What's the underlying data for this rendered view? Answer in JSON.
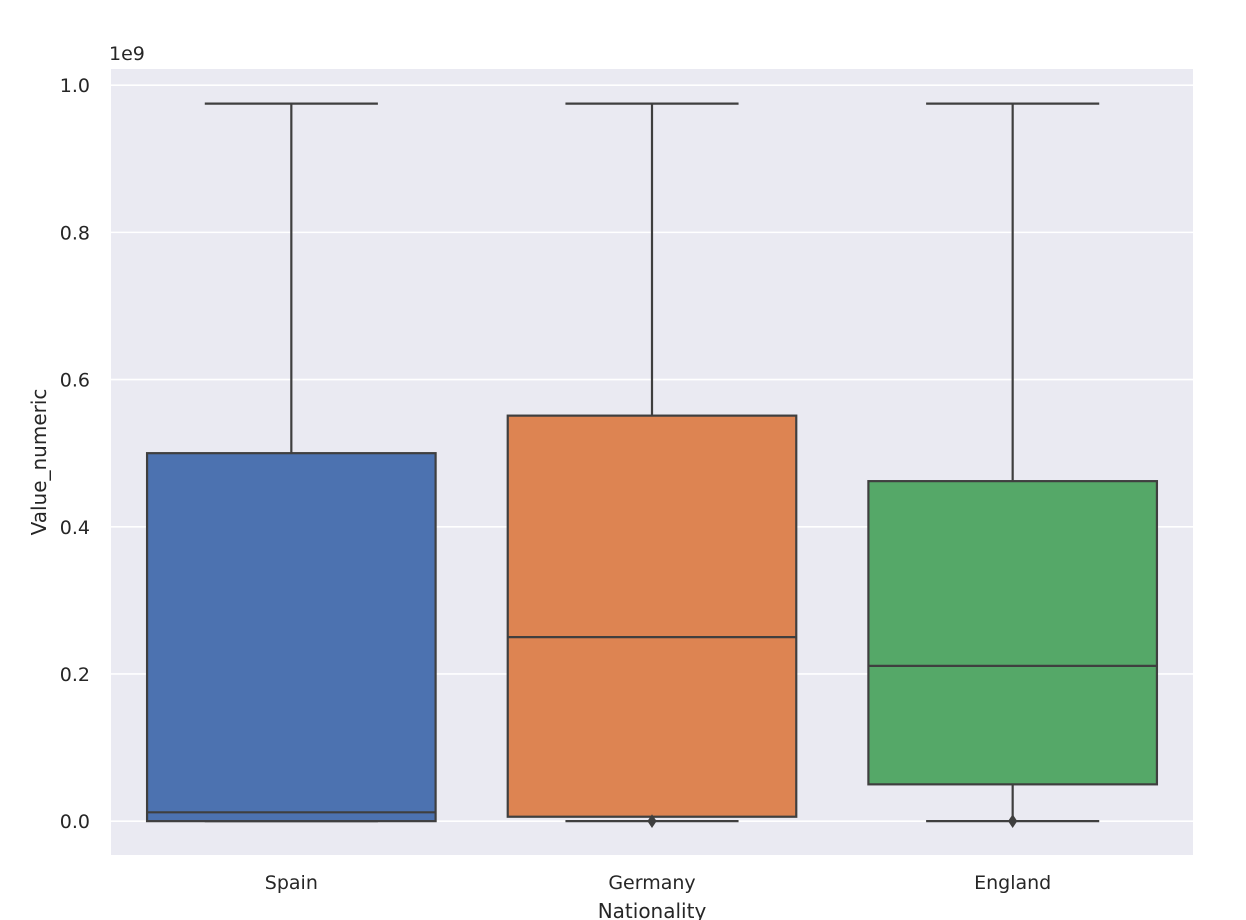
{
  "chart_data": {
    "type": "box",
    "xlabel": "Nationality",
    "ylabel": "Value_numeric",
    "offset_label": "1e9",
    "categories": [
      "Spain",
      "Germany",
      "England"
    ],
    "y_scale": 1000000000,
    "ylim": [
      -0.046,
      1.022
    ],
    "yticks": [
      0.0,
      0.2,
      0.4,
      0.6,
      0.8,
      1.0
    ],
    "ytick_labels": [
      "0.0",
      "0.2",
      "0.4",
      "0.6",
      "0.8",
      "1.0"
    ],
    "grid": true,
    "boxes": [
      {
        "name": "Spain",
        "whislo": 0.0,
        "q1": 0.0,
        "med": 0.012,
        "q3": 0.5,
        "whishi": 0.975,
        "fliers": [],
        "color": "#4c72b0"
      },
      {
        "name": "Germany",
        "whislo": 0.0,
        "q1": 0.006,
        "med": 0.25,
        "q3": 0.551,
        "whishi": 0.975,
        "fliers": [
          0.0
        ],
        "color": "#dd8452"
      },
      {
        "name": "England",
        "whislo": 0.0,
        "q1": 0.05,
        "med": 0.211,
        "q3": 0.462,
        "whishi": 0.975,
        "fliers": [
          0.0
        ],
        "color": "#55a868"
      }
    ],
    "colors": {
      "background": "#eaeaf2",
      "grid": "#ffffff",
      "line": "#3f3f3f"
    }
  }
}
